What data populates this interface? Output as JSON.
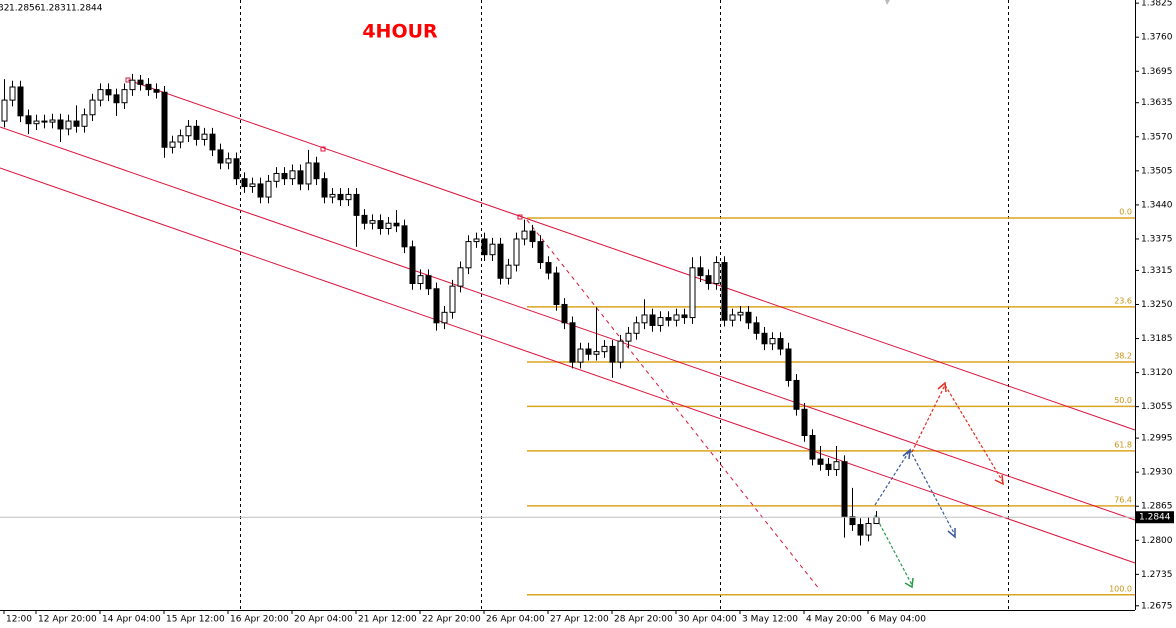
{
  "chart_data": {
    "type": "candlestick",
    "title": "4HOUR",
    "categories": [
      "12:00",
      null,
      null,
      null,
      "12 Apr 20:00",
      null,
      null,
      null,
      null,
      null,
      null,
      null,
      "14 Apr 04:00",
      null,
      null,
      null,
      null,
      null,
      null,
      null,
      "15 Apr 12:00",
      null,
      null,
      null,
      null,
      null,
      null,
      null,
      "16 Apr 20:00",
      null,
      null,
      null,
      null,
      null,
      null,
      null,
      "20 Apr 04:00",
      null,
      null,
      null,
      null,
      null,
      null,
      null,
      "21 Apr 12:00",
      null,
      null,
      null,
      null,
      null,
      null,
      null,
      "22 Apr 20:00",
      null,
      null,
      null,
      null,
      null,
      null,
      null,
      "26 Apr 04:00",
      null,
      null,
      null,
      null,
      null,
      null,
      null,
      "27 Apr 12:00",
      null,
      null,
      null,
      null,
      null,
      null,
      null,
      "28 Apr 20:00",
      null,
      null,
      null,
      null,
      null,
      null,
      null,
      "30 Apr 04:00",
      null,
      null,
      null,
      null,
      null,
      null,
      null,
      "3 May 12:00",
      null,
      null,
      null,
      null,
      null,
      null,
      null,
      "4 May 20:00",
      null,
      null,
      null,
      null,
      null,
      null,
      null,
      "6 May 04:00",
      null
    ],
    "open": [
      1.36,
      1.364,
      1.3665,
      1.361,
      1.3595,
      1.36,
      1.3598,
      1.3602,
      1.3585,
      1.36,
      1.359,
      1.3612,
      1.364,
      1.366,
      1.365,
      1.3635,
      1.366,
      1.3678,
      1.367,
      1.366,
      1.3655,
      1.355,
      1.356,
      1.3572,
      1.359,
      1.3565,
      1.3575,
      1.3545,
      1.352,
      1.3528,
      1.349,
      1.3475,
      1.348,
      1.3455,
      1.3485,
      1.35,
      1.349,
      1.3505,
      1.348,
      1.352,
      1.349,
      1.3455,
      1.346,
      1.345,
      1.346,
      1.342,
      1.3405,
      1.341,
      1.3395,
      1.3405,
      1.34,
      1.336,
      1.329,
      1.3305,
      1.328,
      1.3215,
      1.3235,
      1.3285,
      1.332,
      1.337,
      1.3375,
      1.3345,
      1.3365,
      1.33,
      1.3325,
      1.3375,
      1.339,
      1.337,
      1.333,
      1.331,
      1.325,
      1.3215,
      1.314,
      1.3165,
      1.3155,
      1.316,
      1.317,
      1.314,
      1.318,
      1.3195,
      1.3215,
      1.323,
      1.321,
      1.3225,
      1.322,
      1.323,
      1.3225,
      1.332,
      1.3305,
      1.329,
      1.333,
      1.322,
      1.323,
      1.3235,
      1.3215,
      1.3195,
      1.3175,
      1.3185,
      1.3165,
      1.3105,
      1.305,
      1.3,
      1.2955,
      1.2945,
      1.2935,
      1.295,
      1.2845,
      1.283,
      1.281,
      1.2832
    ],
    "high": [
      1.368,
      1.3677,
      1.3677,
      1.3622,
      1.3612,
      1.3612,
      1.3614,
      1.3614,
      1.3612,
      1.363,
      1.3624,
      1.3652,
      1.3672,
      1.3672,
      1.3662,
      1.3672,
      1.369,
      1.3688,
      1.3682,
      1.3672,
      1.3667,
      1.3572,
      1.3584,
      1.3602,
      1.3602,
      1.3587,
      1.3587,
      1.3557,
      1.354,
      1.354,
      1.3502,
      1.3492,
      1.3492,
      1.3497,
      1.3512,
      1.3512,
      1.3517,
      1.3517,
      1.3545,
      1.3532,
      1.3502,
      1.3472,
      1.3472,
      1.3472,
      1.3472,
      1.3432,
      1.3422,
      1.3422,
      1.3417,
      1.343,
      1.3412,
      1.3372,
      1.3317,
      1.3317,
      1.3292,
      1.3247,
      1.3297,
      1.3332,
      1.3382,
      1.3387,
      1.3387,
      1.3377,
      1.3377,
      1.3337,
      1.3387,
      1.3412,
      1.3402,
      1.3382,
      1.3342,
      1.3322,
      1.3262,
      1.3227,
      1.3177,
      1.3177,
      1.3245,
      1.3182,
      1.3182,
      1.3192,
      1.3207,
      1.3227,
      1.326,
      1.3242,
      1.3237,
      1.3237,
      1.3242,
      1.3242,
      1.334,
      1.3342,
      1.3317,
      1.3342,
      1.3342,
      1.3242,
      1.3247,
      1.3247,
      1.3227,
      1.3207,
      1.3197,
      1.3197,
      1.3177,
      1.3117,
      1.3062,
      1.3012,
      1.298,
      1.2957,
      1.298,
      1.2962,
      1.29,
      1.2842,
      1.2844,
      1.2856
    ],
    "low": [
      1.3588,
      1.3628,
      1.3598,
      1.3575,
      1.3583,
      1.3586,
      1.3586,
      1.356,
      1.3573,
      1.3578,
      1.3578,
      1.36,
      1.3628,
      1.3638,
      1.361,
      1.3623,
      1.3648,
      1.3658,
      1.3648,
      1.3643,
      1.353,
      1.3538,
      1.3548,
      1.356,
      1.3553,
      1.3553,
      1.3533,
      1.3508,
      1.3508,
      1.3478,
      1.3463,
      1.3463,
      1.3443,
      1.3443,
      1.3473,
      1.3478,
      1.3478,
      1.3468,
      1.3468,
      1.3478,
      1.3443,
      1.3443,
      1.3438,
      1.3438,
      1.336,
      1.3393,
      1.3393,
      1.3383,
      1.3383,
      1.3388,
      1.3348,
      1.3278,
      1.3278,
      1.3268,
      1.32,
      1.3203,
      1.3223,
      1.3273,
      1.3308,
      1.3358,
      1.3333,
      1.3333,
      1.3288,
      1.3288,
      1.3313,
      1.3363,
      1.3358,
      1.3318,
      1.3298,
      1.3238,
      1.3203,
      1.3128,
      1.3128,
      1.3143,
      1.3143,
      1.3148,
      1.311,
      1.3128,
      1.3168,
      1.3183,
      1.3203,
      1.3198,
      1.3198,
      1.3208,
      1.3208,
      1.3213,
      1.3213,
      1.3293,
      1.3278,
      1.3278,
      1.3208,
      1.3208,
      1.3218,
      1.3203,
      1.3183,
      1.3163,
      1.3163,
      1.3153,
      1.3093,
      1.3038,
      1.2988,
      1.2943,
      1.2933,
      1.2923,
      1.2923,
      1.2805,
      1.2818,
      1.279,
      1.2798,
      1.2831
    ],
    "close": [
      1.364,
      1.3665,
      1.361,
      1.3595,
      1.36,
      1.3598,
      1.3602,
      1.3585,
      1.36,
      1.359,
      1.3612,
      1.364,
      1.366,
      1.365,
      1.3635,
      1.366,
      1.3678,
      1.367,
      1.366,
      1.3655,
      1.355,
      1.356,
      1.3572,
      1.359,
      1.3565,
      1.3575,
      1.3545,
      1.352,
      1.3528,
      1.349,
      1.3475,
      1.348,
      1.3455,
      1.3485,
      1.35,
      1.349,
      1.3505,
      1.348,
      1.352,
      1.349,
      1.3455,
      1.346,
      1.345,
      1.346,
      1.342,
      1.3405,
      1.341,
      1.3395,
      1.3405,
      1.34,
      1.336,
      1.329,
      1.3305,
      1.328,
      1.3215,
      1.3235,
      1.3285,
      1.332,
      1.337,
      1.3375,
      1.3345,
      1.3365,
      1.33,
      1.3325,
      1.3375,
      1.339,
      1.337,
      1.333,
      1.331,
      1.325,
      1.3215,
      1.314,
      1.3165,
      1.3155,
      1.316,
      1.317,
      1.314,
      1.318,
      1.3195,
      1.3215,
      1.323,
      1.321,
      1.3225,
      1.322,
      1.323,
      1.3225,
      1.332,
      1.3305,
      1.329,
      1.333,
      1.322,
      1.323,
      1.3235,
      1.3215,
      1.3195,
      1.3175,
      1.3185,
      1.3165,
      1.3105,
      1.305,
      1.3,
      1.2955,
      1.2945,
      1.2935,
      1.295,
      1.2845,
      1.283,
      1.281,
      1.2832,
      1.2844
    ],
    "ylim": [
      1.2667,
      1.3831
    ],
    "yticks": [
      1.3825,
      {
        "value": 1.376,
        "label": "1.3760"
      },
      1.3695,
      1.3635,
      {
        "value": 1.357,
        "label": "1.3570"
      },
      1.3505,
      {
        "value": 1.344,
        "label": "1.3440"
      },
      1.3375,
      1.3315,
      {
        "value": 1.325,
        "label": "1.3250"
      },
      1.3185,
      {
        "value": 1.312,
        "label": "1.3120"
      },
      1.3055,
      1.2995,
      {
        "value": 1.293,
        "label": "1.2930"
      },
      1.2865,
      {
        "value": 1.28,
        "label": "1.2800"
      },
      1.2735,
      1.2675
    ],
    "fibonacci": {
      "range": [
        1.3415,
        1.2696
      ],
      "color": "#daa520",
      "levels": [
        {
          "value": 0,
          "label": "0.0"
        },
        23.6,
        38.2,
        {
          "value": 50,
          "label": "50.0"
        },
        61.8,
        76.4,
        {
          "value": 100,
          "label": "100.0"
        }
      ]
    },
    "title_color": "#ff0000"
  }
}
